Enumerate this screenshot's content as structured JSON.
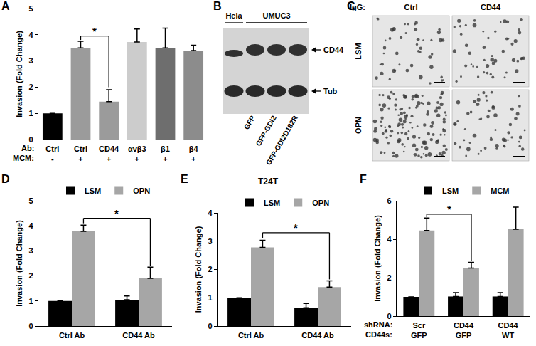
{
  "panel_labels": [
    "A",
    "B",
    "C",
    "D",
    "E",
    "F"
  ],
  "chart_data": [
    {
      "type": "bar",
      "categories": [
        "Ctrl",
        "Ctrl",
        "CD44",
        "αvβ3",
        "β1",
        "β4"
      ],
      "categories_row2": [
        "-",
        "+",
        "+",
        "+",
        "+",
        "+"
      ],
      "row_labels": [
        "Ab:",
        "MCM:"
      ],
      "values": [
        1,
        3.5,
        1.45,
        3.72,
        3.5,
        3.4
      ],
      "error": [
        0,
        0.25,
        0.45,
        0.5,
        0.75,
        0.2
      ],
      "colors": [
        "#000000",
        "#9b9b9b",
        "#9b9b9b",
        "#cccccc",
        "#6e6e6e",
        "#8c8c8c"
      ],
      "y_label": "Invasion (Fold Change)",
      "ylim": [
        0,
        5
      ],
      "yticks": [
        0,
        1,
        2,
        3,
        4,
        5
      ],
      "grid": false,
      "significance": [
        {
          "label": "*",
          "from": {
            "category": 1,
            "series": 0
          },
          "to": {
            "category": 2,
            "series": 0
          },
          "y": 3.95,
          "ends": [
            3.8,
            2.0
          ]
        }
      ]
    },
    {
      "type": "bar",
      "categories": [
        "Ctrl Ab",
        "CD44 Ab"
      ],
      "series": [
        {
          "name": "LSM",
          "color": "#000000",
          "values": [
            1.0,
            1.05
          ],
          "error": [
            0,
            0.15
          ]
        },
        {
          "name": "OPN",
          "color": "#a6a6a6",
          "values": [
            3.78,
            1.9
          ],
          "error": [
            0.25,
            0.45
          ]
        }
      ],
      "y_label": "Invasion (Fold Change)",
      "ylim": [
        0,
        5
      ],
      "yticks": [
        0,
        1,
        2,
        3,
        4,
        5
      ],
      "grid": false,
      "legend": "top",
      "significance": [
        {
          "label": "*",
          "from": {
            "category": 0,
            "series": 1
          },
          "to": {
            "category": 1,
            "series": 1
          },
          "y": 4.3,
          "ends": [
            4.1,
            2.4
          ]
        }
      ]
    },
    {
      "type": "bar",
      "title": "T24T",
      "categories": [
        "Ctrl Ab",
        "CD44 Ab"
      ],
      "series": [
        {
          "name": "LSM",
          "color": "#000000",
          "values": [
            1.0,
            0.65
          ],
          "error": [
            0,
            0.15
          ]
        },
        {
          "name": "OPN",
          "color": "#a6a6a6",
          "values": [
            2.78,
            1.38
          ],
          "error": [
            0.25,
            0.22
          ]
        }
      ],
      "y_label": "Invasion (Fold Change)",
      "ylim": [
        0,
        4
      ],
      "yticks": [
        0,
        1,
        2,
        3,
        4
      ],
      "grid": false,
      "legend": "top",
      "significance": [
        {
          "label": "*",
          "from": {
            "category": 0,
            "series": 1
          },
          "to": {
            "category": 1,
            "series": 1
          },
          "y": 3.3,
          "ends": [
            3.1,
            1.65
          ]
        }
      ]
    },
    {
      "type": "bar",
      "categories": [
        "Scr",
        "CD44",
        "CD44"
      ],
      "categories_row2": [
        "GFP",
        "GFP",
        "WT"
      ],
      "row_labels": [
        "shRNA:",
        "CD44s:"
      ],
      "series": [
        {
          "name": "LSM",
          "color": "#000000",
          "values": [
            1.0,
            1.02,
            1.02
          ],
          "error": [
            0,
            0.2,
            0.2
          ]
        },
        {
          "name": "MCM",
          "color": "#a6a6a6",
          "values": [
            4.45,
            2.5,
            4.52
          ],
          "error": [
            0.65,
            0.3,
            1.15
          ]
        }
      ],
      "y_label": "Invasion (Fold Change)",
      "ylim": [
        0,
        6
      ],
      "yticks": [
        0,
        2,
        4,
        6
      ],
      "grid": false,
      "legend": "top",
      "significance": [
        {
          "label": "*",
          "from": {
            "category": 0,
            "series": 1
          },
          "to": {
            "category": 1,
            "series": 1
          },
          "y": 5.3,
          "ends": [
            5.15,
            2.85
          ]
        }
      ]
    }
  ],
  "blot": {
    "groups": [
      {
        "label": "Hela",
        "lane_labels": [
          null
        ]
      },
      {
        "label": "UMUC3",
        "lane_labels": [
          "GFP",
          "GFP-GDI2",
          "GFP-GDI2D182R"
        ]
      }
    ],
    "bands": [
      "CD44",
      "Tub"
    ]
  },
  "micrographs": {
    "column_title": "IgG:",
    "columns": [
      "Ctrl",
      "CD44"
    ],
    "rows": [
      "LSM",
      "OPN"
    ]
  }
}
